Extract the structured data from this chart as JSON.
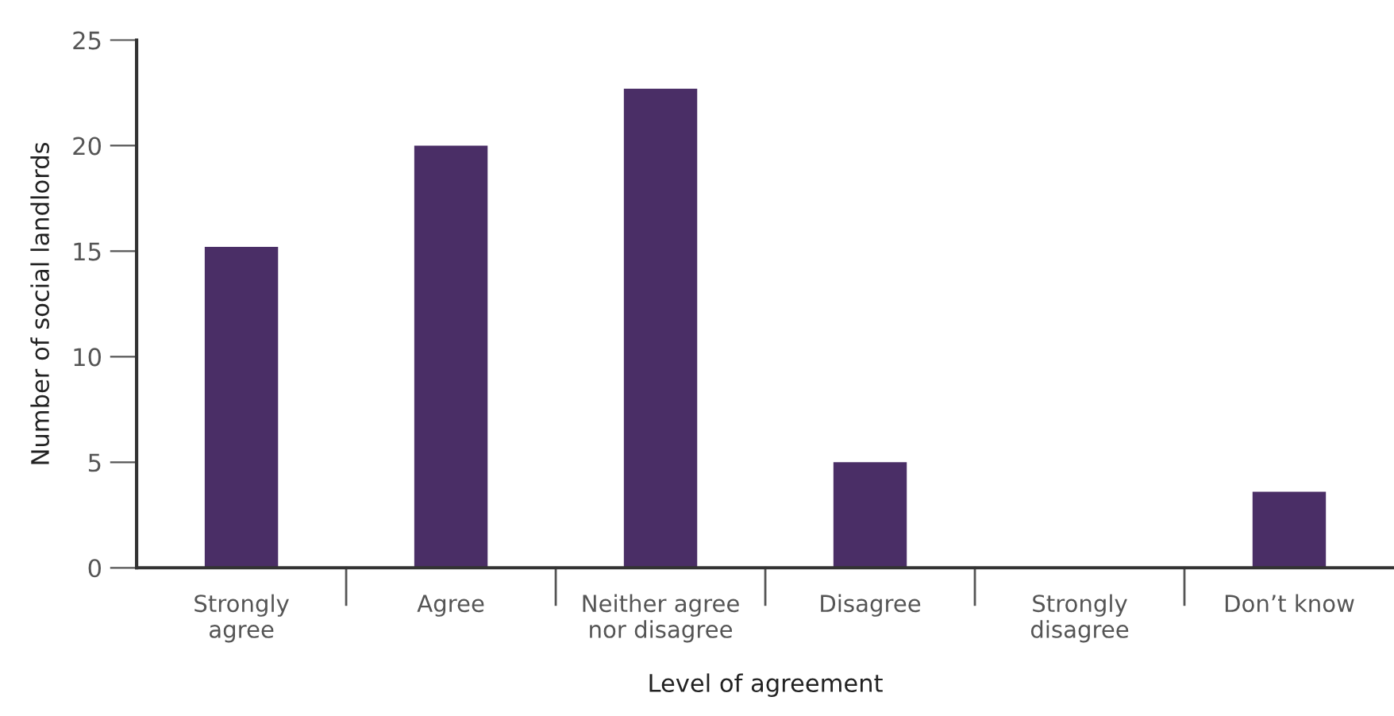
{
  "chart_data": {
    "type": "bar",
    "xlabel": "Level of agreement",
    "ylabel": "Number of social landlords",
    "categories": [
      "Strongly\nagree",
      "Agree",
      "Neither agree\nnor disagree",
      "Disagree",
      "Strongly\ndisagree",
      "Don’t know"
    ],
    "values": [
      15.2,
      20,
      22.7,
      5,
      0,
      3.6
    ],
    "color": "#4a2e66",
    "ylim": [
      0,
      25
    ],
    "yticks": [
      0,
      5,
      10,
      15,
      20,
      25
    ],
    "grid": false
  }
}
